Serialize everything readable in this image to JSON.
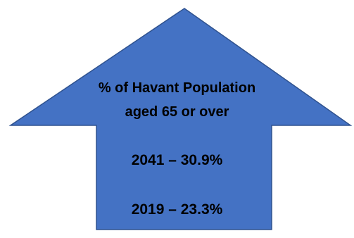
{
  "graphic": {
    "shape": "up-arrow",
    "fill_color": "#4472C4",
    "stroke_color": "#2F528F"
  },
  "heading": {
    "line1": "% of Havant Population",
    "line2": "aged 65 or over"
  },
  "stats": [
    {
      "text": "2041 – 30.9%"
    },
    {
      "text": "2019 – 23.3%"
    }
  ]
}
